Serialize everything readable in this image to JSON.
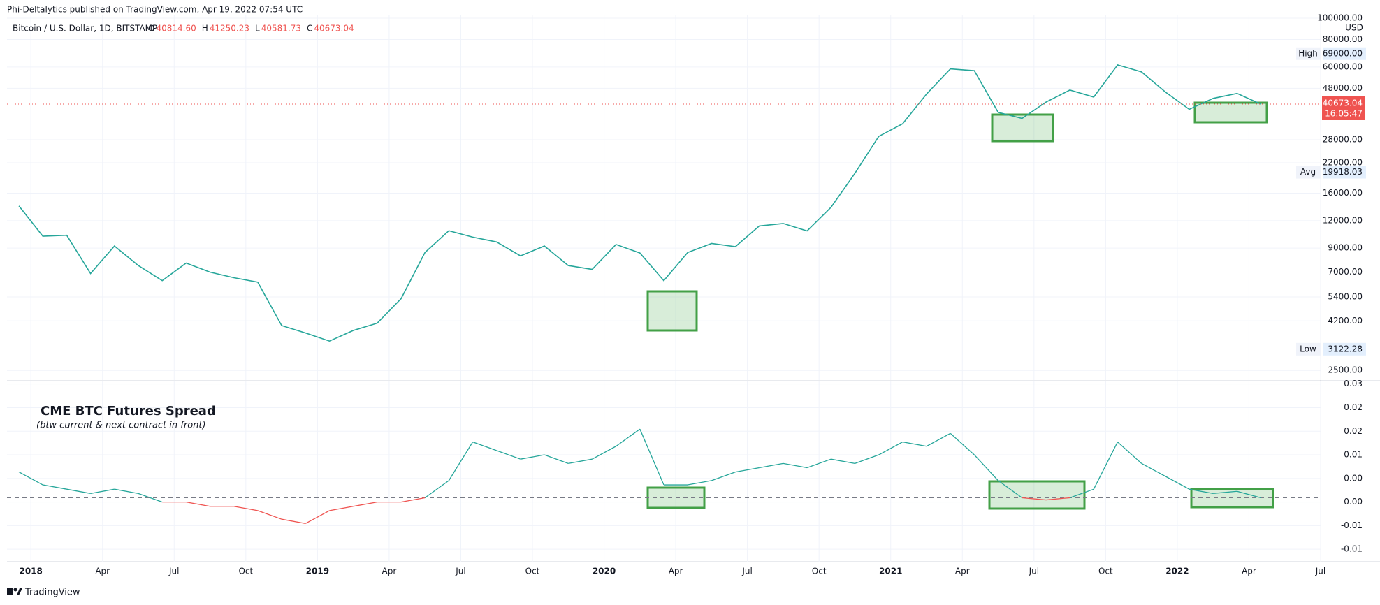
{
  "header": {
    "text": "Phi-Deltalytics published on TradingView.com, Apr 19, 2022 07:54 UTC"
  },
  "footer": {
    "brand": "TradingView"
  },
  "chart_data": [
    {
      "type": "line",
      "title": "Bitcoin / U.S. Dollar, 1D, BITSTAMP",
      "ohlc": [
        {
          "name": "O",
          "value": 40814.6,
          "label": "40814.60"
        },
        {
          "name": "H",
          "value": 41250.23,
          "label": "41250.23"
        },
        {
          "name": "L",
          "value": 40581.73,
          "label": "40581.73"
        },
        {
          "name": "C",
          "value": 40673.04,
          "label": "40673.04"
        }
      ],
      "currency": "USD",
      "log_scale": true,
      "grid": true,
      "x": [
        "2017-12",
        "2018-01",
        "2018-02",
        "2018-03",
        "2018-04",
        "2018-05",
        "2018-06",
        "2018-07",
        "2018-08",
        "2018-09",
        "2018-10",
        "2018-11",
        "2018-12",
        "2019-01",
        "2019-02",
        "2019-03",
        "2019-04",
        "2019-05",
        "2019-06",
        "2019-07",
        "2019-08",
        "2019-09",
        "2019-10",
        "2019-11",
        "2019-12",
        "2020-01",
        "2020-02",
        "2020-03",
        "2020-04",
        "2020-05",
        "2020-06",
        "2020-07",
        "2020-08",
        "2020-09",
        "2020-10",
        "2020-11",
        "2020-12",
        "2021-01",
        "2021-02",
        "2021-03",
        "2021-04",
        "2021-05",
        "2021-06",
        "2021-07",
        "2021-08",
        "2021-09",
        "2021-10",
        "2021-11",
        "2021-12",
        "2022-01",
        "2022-02",
        "2022-03",
        "2022-04"
      ],
      "series": [
        {
          "name": "Bitcoin / U.S. Dollar",
          "color": "#26a69a",
          "values": [
            14000,
            10200,
            10300,
            6900,
            9200,
            7500,
            6400,
            7700,
            7000,
            6600,
            6300,
            4000,
            3700,
            3400,
            3800,
            4100,
            5300,
            8600,
            10800,
            10100,
            9600,
            8300,
            9200,
            7500,
            7200,
            9350,
            8550,
            6400,
            8600,
            9450,
            9140,
            11350,
            11650,
            10780,
            13800,
            19700,
            29000,
            33100,
            45200,
            58800,
            57700,
            37300,
            35000,
            41500,
            47100,
            43800,
            61300,
            57000,
            46200,
            38500,
            43200,
            45500,
            40673.04
          ]
        }
      ],
      "ylim": [
        2260,
        103000
      ],
      "yticks": [
        {
          "value": 2500,
          "label": "2500.00"
        },
        {
          "value": 4200,
          "label": "4200.00"
        },
        {
          "value": 5400,
          "label": "5400.00"
        },
        {
          "value": 7000,
          "label": "7000.00"
        },
        {
          "value": 9000,
          "label": "9000.00"
        },
        {
          "value": 12000,
          "label": "12000.00"
        },
        {
          "value": 16000,
          "label": "16000.00"
        },
        {
          "value": 22000,
          "label": "22000.00"
        },
        {
          "value": 28000,
          "label": "28000.00"
        },
        {
          "value": 48000,
          "label": "48000.00"
        },
        {
          "value": 60000,
          "label": "60000.00"
        },
        {
          "value": 80000,
          "label": "80000.00"
        },
        {
          "value": 100000,
          "label": "100000.00"
        }
      ],
      "markers": [
        {
          "name": "High",
          "value": 69000,
          "label": "69000.00"
        },
        {
          "name": "Avg",
          "value": 19918.03,
          "label": "19918.03"
        },
        {
          "name": "Low",
          "value": 3122.28,
          "label": "3122.28"
        }
      ],
      "last_price": {
        "value": 40673.04,
        "label": "40673.04",
        "countdown": "16:05:47",
        "color": "#ef5350"
      },
      "xlim": [
        "2017-12",
        "2022-07"
      ],
      "xticks": [
        {
          "value": "2018-01",
          "label": "2018"
        },
        {
          "value": "2018-04",
          "label": "Apr"
        },
        {
          "value": "2018-07",
          "label": "Jul"
        },
        {
          "value": "2018-10",
          "label": "Oct"
        },
        {
          "value": "2019-01",
          "label": "2019"
        },
        {
          "value": "2019-04",
          "label": "Apr"
        },
        {
          "value": "2019-07",
          "label": "Jul"
        },
        {
          "value": "2019-10",
          "label": "Oct"
        },
        {
          "value": "2020-01",
          "label": "2020"
        },
        {
          "value": "2020-04",
          "label": "Apr"
        },
        {
          "value": "2020-07",
          "label": "Jul"
        },
        {
          "value": "2020-10",
          "label": "Oct"
        },
        {
          "value": "2021-01",
          "label": "2021"
        },
        {
          "value": "2021-04",
          "label": "Apr"
        },
        {
          "value": "2021-07",
          "label": "Jul"
        },
        {
          "value": "2021-10",
          "label": "Oct"
        },
        {
          "value": "2022-01",
          "label": "2022"
        },
        {
          "value": "2022-04",
          "label": "Apr"
        },
        {
          "value": "2022-07",
          "label": "Jul"
        }
      ]
    },
    {
      "type": "line",
      "title": "CME BTC Futures Spread",
      "subtitle": "(btw current & next contract in front)",
      "colors": {
        "positive": "#26a69a",
        "negative": "#ef5350"
      },
      "hline": 0,
      "x": [
        "2017-12",
        "2018-01",
        "2018-02",
        "2018-03",
        "2018-04",
        "2018-05",
        "2018-06",
        "2018-07",
        "2018-08",
        "2018-09",
        "2018-10",
        "2018-11",
        "2018-12",
        "2019-01",
        "2019-02",
        "2019-03",
        "2019-04",
        "2019-05",
        "2019-06",
        "2019-07",
        "2019-08",
        "2019-09",
        "2019-10",
        "2019-11",
        "2019-12",
        "2020-01",
        "2020-02",
        "2020-03",
        "2020-04",
        "2020-05",
        "2020-06",
        "2020-07",
        "2020-08",
        "2020-09",
        "2020-10",
        "2020-11",
        "2020-12",
        "2021-01",
        "2021-02",
        "2021-03",
        "2021-04",
        "2021-05",
        "2021-06",
        "2021-07",
        "2021-08",
        "2021-09",
        "2021-10",
        "2021-11",
        "2021-12",
        "2022-01",
        "2022-02",
        "2022-03",
        "2022-04"
      ],
      "values": [
        0.006,
        0.003,
        0.002,
        0.001,
        0.002,
        0.001,
        -0.001,
        -0.001,
        -0.002,
        -0.002,
        -0.003,
        -0.005,
        -0.006,
        -0.003,
        -0.002,
        -0.001,
        -0.001,
        0.0,
        0.004,
        0.013,
        0.011,
        0.009,
        0.01,
        0.008,
        0.009,
        0.012,
        0.016,
        0.003,
        0.003,
        0.004,
        0.006,
        0.007,
        0.008,
        0.007,
        0.009,
        0.008,
        0.01,
        0.013,
        0.012,
        0.015,
        0.01,
        0.004,
        0.0,
        -0.0005,
        0.0,
        0.002,
        0.013,
        0.008,
        0.005,
        0.002,
        0.001,
        0.0015,
        0.0
      ],
      "ylim": [
        -0.0149,
        0.0271
      ],
      "yticks": [
        {
          "value": -0.012,
          "label": "-0.01"
        },
        {
          "value": -0.0065,
          "label": "-0.01"
        },
        {
          "value": -0.001,
          "label": "-0.00"
        },
        {
          "value": 0.0045,
          "label": "0.00"
        },
        {
          "value": 0.01,
          "label": "0.01"
        },
        {
          "value": 0.0155,
          "label": "0.02"
        },
        {
          "value": 0.021,
          "label": "0.02"
        },
        {
          "value": 0.0265,
          "label": "0.03"
        }
      ]
    }
  ]
}
